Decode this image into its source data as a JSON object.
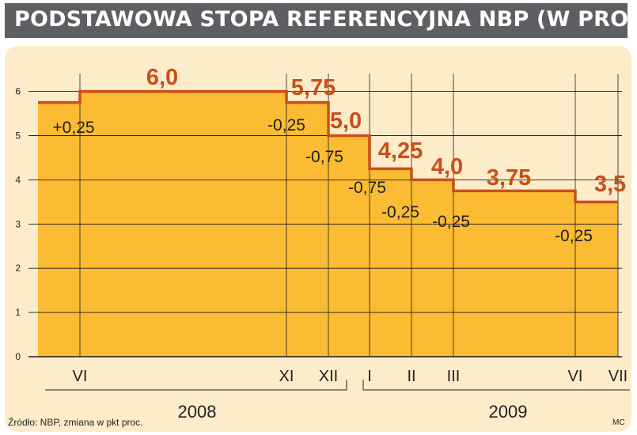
{
  "header": {
    "title": "PODSTAWOWA STOPA REFERENCYJNA NBP (W PROC.)"
  },
  "footer": {
    "source": "Źródło: NBP, zmiana w pkt proc.",
    "credit": "MC"
  },
  "colors": {
    "fill": "#fbbb33",
    "line": "#c84f1b",
    "rate_label": "#c84f1b",
    "title_bar": "#5e5f62",
    "panel": "#fdecc9"
  },
  "chart_data": {
    "type": "area",
    "step": true,
    "title": "PODSTAWOWA STOPA REFERENCYJNA NBP (W PROC.)",
    "ylim": [
      0,
      6
    ],
    "yticks": [
      0,
      1,
      2,
      3,
      4,
      5,
      6
    ],
    "grid": true,
    "month_ticks": [
      "VI",
      "XI",
      "XII",
      "I",
      "II",
      "III",
      "VI",
      "VII"
    ],
    "years": [
      "2008",
      "2009"
    ],
    "levels": [
      {
        "label": "5,75",
        "value": 5.75,
        "shown": false
      },
      {
        "label": "6,0",
        "value": 6.0,
        "shown": true
      },
      {
        "label": "5,75",
        "value": 5.75,
        "shown": true
      },
      {
        "label": "5,0",
        "value": 5.0,
        "shown": true
      },
      {
        "label": "4,25",
        "value": 4.25,
        "shown": true
      },
      {
        "label": "4,0",
        "value": 4.0,
        "shown": true
      },
      {
        "label": "3,75",
        "value": 3.75,
        "shown": true
      },
      {
        "label": "3,5",
        "value": 3.5,
        "shown": true
      }
    ],
    "changes": [
      "+0,25",
      "-0,25",
      "-0,75",
      "-0,75",
      "-0,25",
      "-0,25",
      "-0,25"
    ]
  }
}
